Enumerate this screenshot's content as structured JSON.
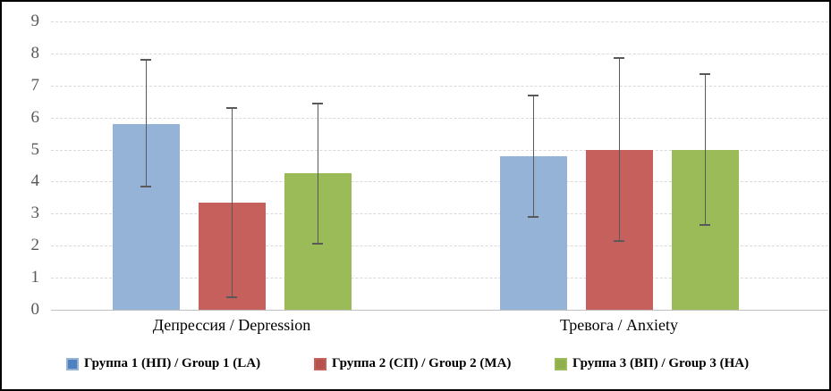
{
  "chart_data": {
    "type": "bar",
    "title": "",
    "categories": [
      "Депрессия / Depression",
      "Тревога / Anxiety"
    ],
    "series": [
      {
        "name": "Группа 1 (НП) / Group 1 (LA)",
        "color": "#95B3D7",
        "marker_color": "#4F81BD",
        "values": [
          5.8,
          4.8
        ],
        "error_low": [
          3.85,
          2.9
        ],
        "error_high": [
          7.8,
          6.7
        ]
      },
      {
        "name": "Группа 2 (СП) / Group 2 (MA)",
        "color": "#C5605D",
        "marker_color": "#B5524E",
        "values": [
          3.35,
          5.0
        ],
        "error_low": [
          0.4,
          2.15
        ],
        "error_high": [
          6.3,
          7.85
        ]
      },
      {
        "name": "Группа 3 (ВП) / Group 3 (HA)",
        "color": "#9BBB59",
        "marker_color": "#8FAF4C",
        "values": [
          4.25,
          5.0
        ],
        "error_low": [
          2.05,
          2.65
        ],
        "error_high": [
          6.45,
          7.35
        ]
      }
    ],
    "ylim": [
      0,
      9
    ],
    "ytick_labels": [
      "0",
      "1",
      "2",
      "3",
      "4",
      "5",
      "6",
      "7",
      "8",
      "9"
    ],
    "grid": "horizontal-dashed",
    "legend_position": "bottom",
    "error_bars": true,
    "xlabel": "",
    "ylabel": ""
  },
  "colors": {
    "gridline": "#D9D9D9",
    "axis_line": "#BFBFBF",
    "tick_label": "#595959",
    "error_bar": "#595959",
    "text": "#000000",
    "border": "#000000",
    "background": "#FFFFFF"
  }
}
